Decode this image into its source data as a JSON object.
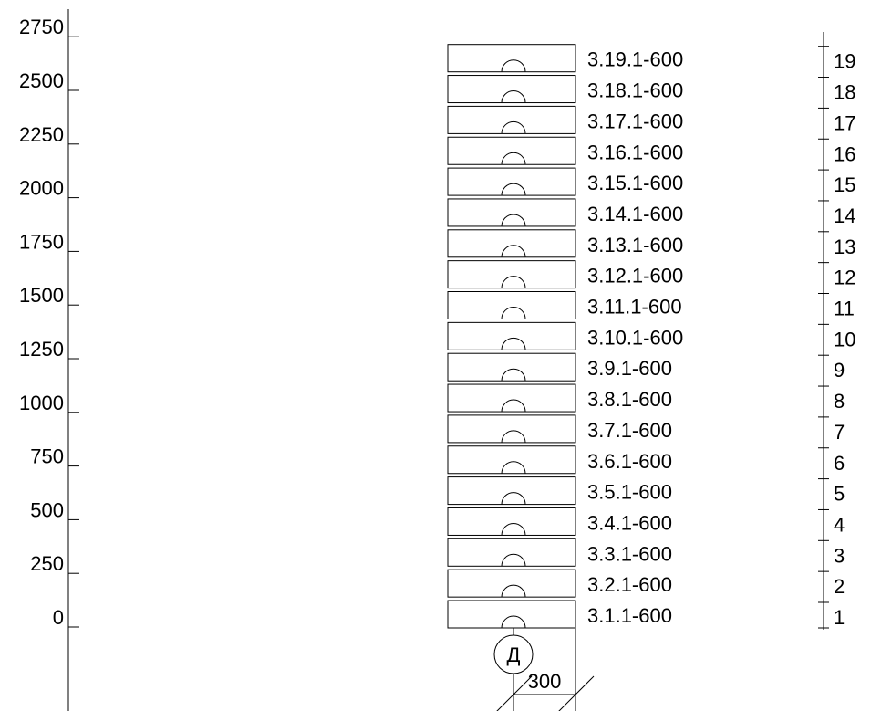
{
  "scale": {
    "labels": [
      "0",
      "250",
      "500",
      "750",
      "1000",
      "1250",
      "1500",
      "1750",
      "2000",
      "2250",
      "2500",
      "2750"
    ]
  },
  "panels": [
    {
      "label": "3.1.1-600",
      "level": "1"
    },
    {
      "label": "3.2.1-600",
      "level": "2"
    },
    {
      "label": "3.3.1-600",
      "level": "3"
    },
    {
      "label": "3.4.1-600",
      "level": "4"
    },
    {
      "label": "3.5.1-600",
      "level": "5"
    },
    {
      "label": "3.6.1-600",
      "level": "6"
    },
    {
      "label": "3.7.1-600",
      "level": "7"
    },
    {
      "label": "3.8.1-600",
      "level": "8"
    },
    {
      "label": "3.9.1-600",
      "level": "9"
    },
    {
      "label": "3.10.1-600",
      "level": "10"
    },
    {
      "label": "3.11.1-600",
      "level": "11"
    },
    {
      "label": "3.12.1-600",
      "level": "12"
    },
    {
      "label": "3.13.1-600",
      "level": "13"
    },
    {
      "label": "3.14.1-600",
      "level": "14"
    },
    {
      "label": "3.15.1-600",
      "level": "15"
    },
    {
      "label": "3.16.1-600",
      "level": "16"
    },
    {
      "label": "3.17.1-600",
      "level": "17"
    },
    {
      "label": "3.18.1-600",
      "level": "18"
    },
    {
      "label": "3.19.1-600",
      "level": "19"
    }
  ],
  "axis": {
    "label": "Д"
  },
  "dimension": {
    "value": "300"
  }
}
